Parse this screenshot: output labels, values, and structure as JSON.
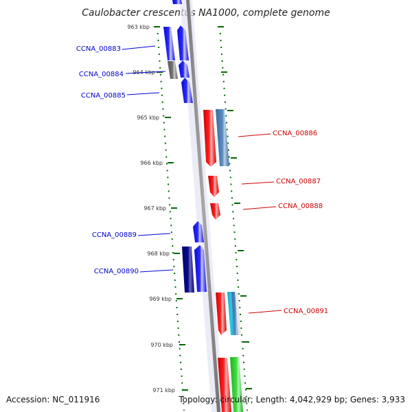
{
  "title": "Caulobacter crescentus NA1000, complete genome",
  "accession_text": "Accession: NC_011916",
  "topology_text": "Topology: circular; Length: 4,042,929 bp; Genes: 3,933",
  "colors": {
    "forward": "#0000ee",
    "reverse": "#dd0000",
    "backbone": "#8c8c8c",
    "tick": "#007700"
  },
  "ticks": [
    {
      "label": "963 kbp"
    },
    {
      "label": "964 kbp"
    },
    {
      "label": "965 kbp"
    },
    {
      "label": "966 kbp"
    },
    {
      "label": "967 kbp"
    },
    {
      "label": "968 kbp"
    },
    {
      "label": "969 kbp"
    },
    {
      "label": "970 kbp"
    },
    {
      "label": "971 kbp"
    }
  ],
  "genes": [
    {
      "name": "CCNA_00883",
      "strand": "forward"
    },
    {
      "name": "CCNA_00884",
      "strand": "forward"
    },
    {
      "name": "CCNA_00885",
      "strand": "forward"
    },
    {
      "name": "CCNA_00886",
      "strand": "reverse"
    },
    {
      "name": "CCNA_00887",
      "strand": "reverse"
    },
    {
      "name": "CCNA_00888",
      "strand": "reverse"
    },
    {
      "name": "CCNA_00889",
      "strand": "forward"
    },
    {
      "name": "CCNA_00890",
      "strand": "forward"
    },
    {
      "name": "CCNA_00891",
      "strand": "reverse"
    }
  ]
}
